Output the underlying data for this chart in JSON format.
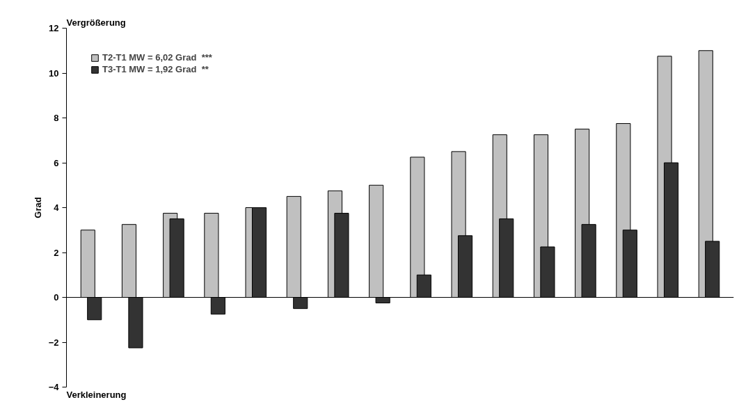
{
  "chart_data": {
    "type": "bar",
    "ylabel": "Grad",
    "categories": [
      null,
      null,
      null,
      null,
      null,
      null,
      null,
      null,
      null,
      null,
      null,
      null,
      null,
      null,
      null,
      null
    ],
    "series": [
      {
        "name": "T2-T1 MW = 6,02 Grad  ***",
        "color": "#c0c0c0",
        "values": [
          3,
          3.25,
          3.75,
          3.75,
          4,
          4.5,
          4.75,
          5,
          6.25,
          6.5,
          7.25,
          7.25,
          7.5,
          7.75,
          10.75,
          11
        ]
      },
      {
        "name": "T3-T1 MW = 1,92 Grad  **",
        "color": "#333333",
        "values": [
          -1,
          -2.25,
          3.5,
          -0.75,
          4,
          -0.5,
          3.75,
          -0.25,
          1,
          2.75,
          3.5,
          2.25,
          3.25,
          3,
          6,
          2.5
        ]
      }
    ],
    "ylim": [
      -4,
      12
    ],
    "yticks": [
      -4,
      -2,
      0,
      2,
      4,
      6,
      8,
      10,
      12
    ],
    "annotations": [
      "Vergrößerung",
      "Verkleinerung"
    ],
    "legend": "top left"
  }
}
